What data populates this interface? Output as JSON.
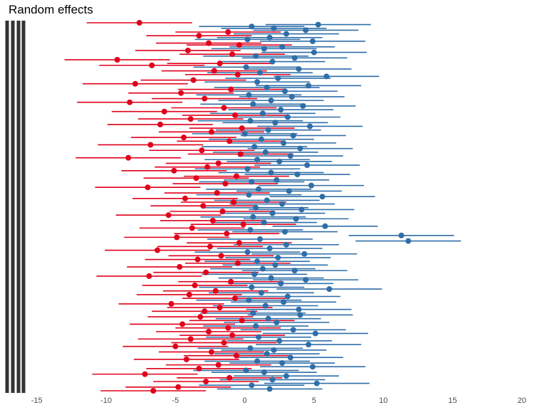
{
  "chart_data": {
    "type": "scatter",
    "subtype": "forest-plot-point-with-interval",
    "title": "Random effects",
    "xlabel": "",
    "ylabel": "",
    "xlim": [
      -15.5,
      21.5
    ],
    "x_ticks": [
      -15,
      -10,
      -5,
      0,
      5,
      10,
      15,
      20
    ],
    "x_tick_labels": [
      "-15",
      "-10",
      "-5",
      "0",
      "5",
      "10",
      "15",
      "20"
    ],
    "y_tick_labels_legible": false,
    "grid": false,
    "legend": "none",
    "n_rows": 200,
    "ci_half_width": 3.8,
    "colors": {
      "negative": "#e0001b",
      "positive": "#2f6ea8",
      "axis_text": "#4d4d4d",
      "y_labels": "#333333"
    },
    "series": [
      {
        "values": [
          -7.6,
          5.3,
          0.5,
          2.1,
          4.4,
          -1.2,
          3.0,
          -3.3,
          1.8,
          0.2,
          4.9,
          -2.6,
          -0.4,
          2.7,
          1.4,
          -4.1,
          5.0,
          -0.9,
          0.8,
          3.6,
          -9.2,
          2.0,
          -1.8,
          -6.7,
          0.1,
          3.9,
          -2.2,
          1.1,
          -0.5,
          5.9,
          2.4,
          -3.7,
          0.9,
          -7.9,
          4.6,
          1.6,
          -1.0,
          2.9,
          -4.6,
          0.3,
          3.4,
          -2.9,
          1.9,
          -8.3,
          0.6,
          4.2,
          -1.5,
          2.6,
          -5.8,
          1.3,
          -0.7,
          3.1,
          -3.9,
          0.4,
          2.2,
          -6.1,
          4.7,
          -0.2,
          1.7,
          -2.4,
          0.0,
          3.5,
          -4.4,
          1.2,
          -1.1,
          2.8,
          -6.8,
          0.7,
          4.0,
          -3.1,
          1.5,
          -0.3,
          3.3,
          -8.4,
          0.9,
          2.5,
          -1.9,
          4.5,
          -2.7,
          0.2,
          -5.1,
          1.9,
          3.8,
          -0.6,
          -3.5,
          2.3,
          0.5,
          -1.4,
          4.8,
          -7.0,
          1.0,
          3.2,
          -2.0,
          0.3,
          5.6,
          -4.3,
          1.6,
          -0.8,
          2.7,
          -3.0,
          0.8,
          4.1,
          -1.6,
          2.0,
          -5.5,
          0.6,
          3.7,
          -2.3,
          1.4,
          -0.1,
          5.8,
          -3.8,
          0.4,
          2.9,
          -1.3,
          11.3,
          -4.9,
          1.1,
          11.8,
          -0.4,
          3.0,
          -2.5,
          1.8,
          -6.3,
          0.2,
          4.3,
          -1.7,
          2.4,
          -3.4,
          0.9,
          -0.5,
          2.2,
          -4.7,
          1.3,
          3.6,
          -2.8,
          0.7,
          -6.9,
          1.9,
          4.4,
          -1.0,
          2.6,
          -3.6,
          0.5,
          6.1,
          -2.1,
          1.2,
          -4.0,
          3.1,
          -0.7,
          0.3,
          2.8,
          -5.3,
          1.5,
          -1.8,
          3.9,
          -2.9,
          0.6,
          4.0,
          -3.2,
          1.7,
          -0.2,
          2.3,
          -4.5,
          0.8,
          -1.2,
          3.5,
          -2.6,
          5.1,
          -0.9,
          1.0,
          -3.9,
          2.5,
          -1.5,
          4.6,
          -5.0,
          0.4,
          2.1,
          -2.4,
          1.6,
          -0.6,
          3.3,
          -4.2,
          0.9,
          2.7,
          -1.9,
          4.9,
          -3.3,
          0.1,
          1.4,
          -7.2,
          3.0,
          -1.1,
          2.0,
          -2.8,
          5.2,
          0.5,
          -4.8,
          1.8,
          -6.6
        ]
      }
    ]
  }
}
